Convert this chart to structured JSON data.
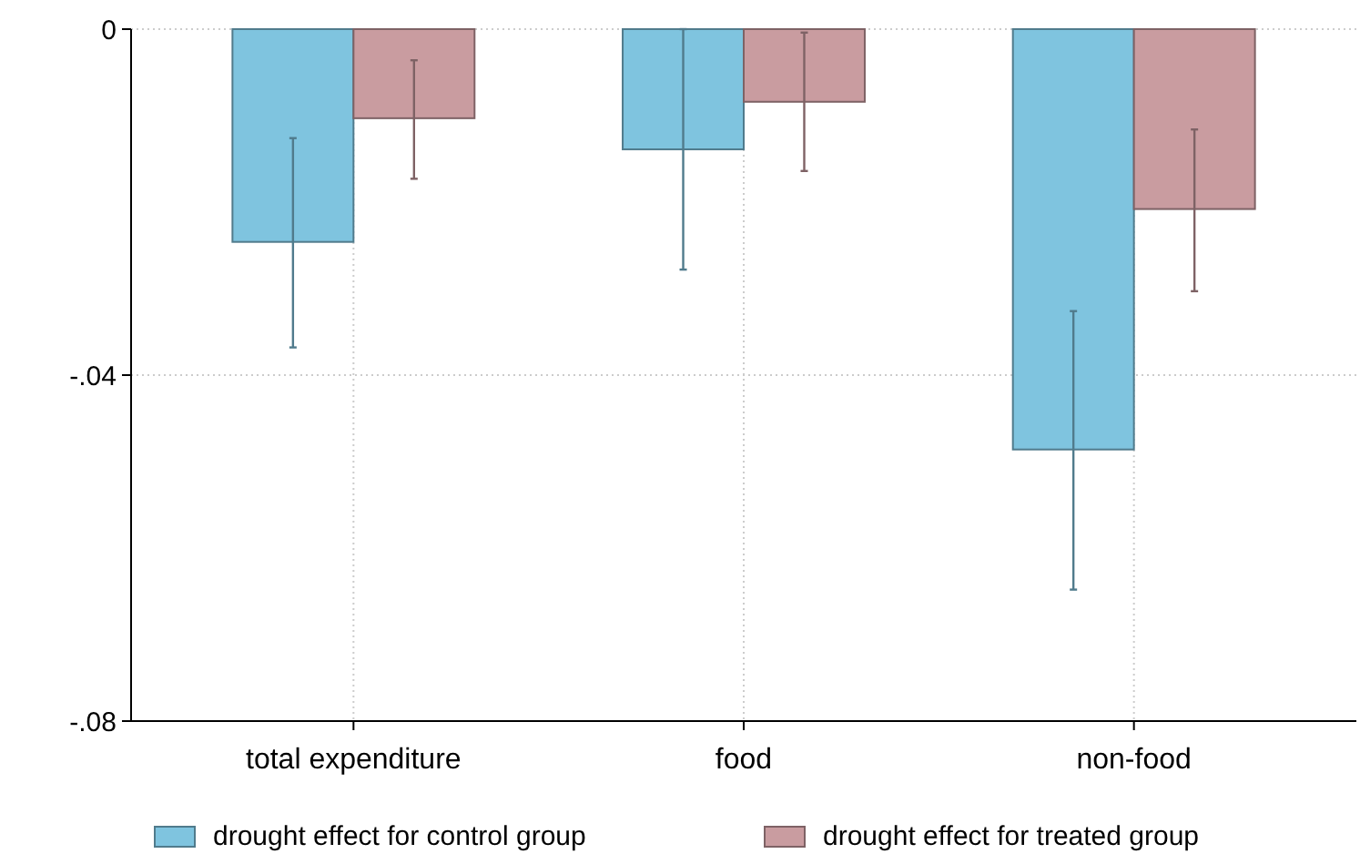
{
  "chart_data": {
    "type": "bar",
    "categories": [
      "total expenditure",
      "food",
      "non-food"
    ],
    "series": [
      {
        "name": "drought effect for control group",
        "color": "#7fc4df",
        "values": [
          -0.0246,
          -0.0139,
          -0.0486
        ],
        "errors": [
          [
            -0.0368,
            -0.0126
          ],
          [
            -0.0278,
            0
          ],
          [
            -0.0648,
            -0.0326
          ]
        ]
      },
      {
        "name": "drought effect for treated group",
        "color": "#c99ca0",
        "values": [
          -0.0103,
          -0.0084,
          -0.0208
        ],
        "errors": [
          [
            -0.0173,
            -0.0036
          ],
          [
            -0.0164,
            -0.0004
          ],
          [
            -0.0303,
            -0.0116
          ]
        ]
      }
    ],
    "ylim": [
      -0.08,
      0
    ],
    "yticks": [
      {
        "value": 0,
        "label": "0"
      },
      {
        "value": -0.04,
        "label": "-.04"
      },
      {
        "value": -0.08,
        "label": "-.08"
      }
    ],
    "grid": true,
    "legend": "bottom"
  }
}
